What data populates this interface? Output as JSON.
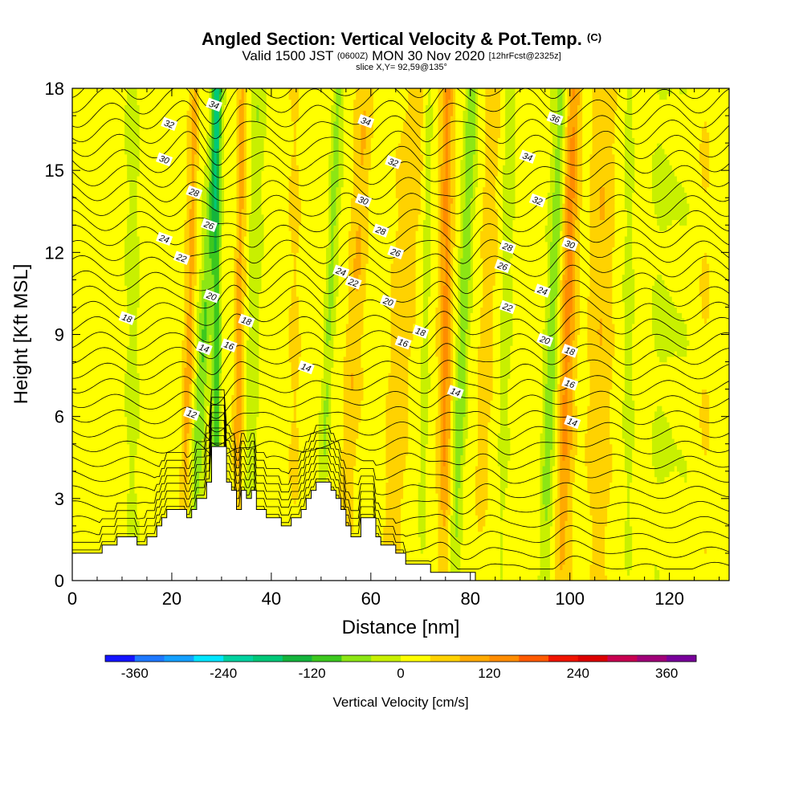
{
  "chart_data": {
    "type": "heatmap",
    "title": "Angled Section: Vertical Velocity & Pot.Temp.",
    "title_suffix": "(C)",
    "subtitle_valid": "Valid 1500 JST",
    "subtitle_utc": "(0600Z)",
    "subtitle_date": "MON 30 Nov 2020",
    "subtitle_fcst": "[12hrFcst@2325z]",
    "slice_label": "slice X,Y= 92,59@135°",
    "xlabel": "Distance [nm]",
    "ylabel": "Height [Kft MSL]",
    "xlim": [
      0,
      132
    ],
    "ylim": [
      0,
      18
    ],
    "x_ticks": [
      0,
      20,
      40,
      60,
      80,
      100,
      120
    ],
    "y_ticks": [
      0,
      3,
      6,
      9,
      12,
      15,
      18
    ],
    "colorbar": {
      "label": "Vertical Velocity [cm/s]",
      "range": [
        -400,
        400
      ],
      "step": 40,
      "tick_values": [
        -360,
        -240,
        -120,
        0,
        120,
        240,
        360
      ],
      "colors": [
        "#1414ff",
        "#1e78ff",
        "#14a0ff",
        "#00e6ff",
        "#00d2a0",
        "#00c878",
        "#14b43c",
        "#3cc81e",
        "#8ce614",
        "#c8f000",
        "#ffff00",
        "#ffd200",
        "#ffaa00",
        "#ff8c00",
        "#ff5a00",
        "#f01400",
        "#dc0000",
        "#c80050",
        "#a00078",
        "#78009b"
      ]
    },
    "velocity_bands": [
      {
        "x": 26.5,
        "w": 1.2,
        "amp": -90,
        "tilt": 0.9
      },
      {
        "x": 29.0,
        "w": 0.9,
        "amp": -130,
        "tilt": 0.0
      },
      {
        "x": 23.5,
        "w": 1.0,
        "amp": 70,
        "tilt": 0.4
      },
      {
        "x": 33.5,
        "w": 1.0,
        "amp": 85,
        "tilt": 0.2
      },
      {
        "x": 36.5,
        "w": 1.2,
        "amp": -60,
        "tilt": 0.3
      },
      {
        "x": 45.0,
        "w": 1.5,
        "amp": 25,
        "tilt": 0.0
      },
      {
        "x": 51.5,
        "w": 1.0,
        "amp": -70,
        "tilt": 0.6
      },
      {
        "x": 56.5,
        "w": 1.8,
        "amp": 55,
        "tilt": 0.8
      },
      {
        "x": 66.5,
        "w": 2.5,
        "amp": 50,
        "tilt": 0.8
      },
      {
        "x": 71.0,
        "w": 1.0,
        "amp": -45,
        "tilt": 0.2
      },
      {
        "x": 75.0,
        "w": 1.3,
        "amp": 120,
        "tilt": 0.1
      },
      {
        "x": 78.5,
        "w": 1.2,
        "amp": -95,
        "tilt": 0.55
      },
      {
        "x": 83.0,
        "w": 1.5,
        "amp": 50,
        "tilt": 0.4
      },
      {
        "x": 87.0,
        "w": 1.0,
        "amp": -45,
        "tilt": 0.3
      },
      {
        "x": 96.5,
        "w": 1.3,
        "amp": -80,
        "tilt": 0.6
      },
      {
        "x": 99.5,
        "w": 1.6,
        "amp": 105,
        "tilt": 0.4
      },
      {
        "x": 106.0,
        "w": 3.0,
        "amp": 50,
        "tilt": 0.3
      },
      {
        "x": 112.0,
        "w": 1.2,
        "amp": -35,
        "tilt": 0.0
      },
      {
        "x": 5.0,
        "w": 2.5,
        "amp": 20,
        "tilt": 0.0
      },
      {
        "x": 12.0,
        "w": 2.0,
        "amp": -20,
        "tilt": 0.0
      },
      {
        "x": 120.0,
        "w": 3.0,
        "amp": -25,
        "tilt": 0.0
      },
      {
        "x": 127.0,
        "w": 2.0,
        "amp": 15,
        "tilt": 0.0
      }
    ],
    "terrain": {
      "x": [
        0,
        5,
        6,
        9,
        13,
        15,
        17,
        18,
        19,
        20,
        23,
        24,
        25,
        27,
        28,
        30,
        31,
        32,
        33,
        34,
        35,
        36,
        37,
        38,
        39,
        40,
        42,
        44,
        46,
        47,
        48,
        49,
        50,
        52,
        53,
        54,
        55,
        56,
        57,
        58,
        59,
        61,
        62,
        63,
        65,
        66,
        67,
        68,
        72,
        73,
        80
      ],
      "y": [
        1.0,
        1.0,
        1.3,
        1.6,
        1.3,
        1.6,
        2.0,
        2.3,
        2.6,
        2.6,
        2.3,
        2.6,
        3.0,
        3.6,
        4.9,
        4.9,
        3.6,
        3.3,
        2.6,
        3.3,
        3.0,
        3.3,
        2.6,
        2.6,
        2.3,
        2.3,
        2.0,
        2.3,
        2.6,
        3.0,
        3.3,
        3.6,
        3.6,
        3.3,
        3.0,
        2.6,
        2.0,
        1.6,
        1.6,
        2.3,
        2.3,
        1.6,
        1.3,
        1.3,
        1.0,
        1.0,
        0.6,
        0.6,
        0.3,
        0.3,
        0.3
      ]
    },
    "theta_contours": {
      "levels_c": [
        0,
        1,
        2,
        3,
        4,
        5,
        6,
        7,
        8,
        9,
        10,
        11,
        12,
        13,
        14,
        15,
        16,
        17,
        18,
        19,
        20,
        21,
        22,
        23,
        24,
        25,
        26,
        27,
        28,
        29,
        30,
        31,
        32,
        33,
        34,
        35,
        36,
        37,
        38
      ],
      "base_height_kft": 0.5,
      "spacing_kft": 0.55,
      "labels": [
        {
          "text": "34",
          "x": 28.5,
          "y": 17.4
        },
        {
          "text": "32",
          "x": 19.5,
          "y": 16.7
        },
        {
          "text": "30",
          "x": 18.5,
          "y": 15.4
        },
        {
          "text": "28",
          "x": 24.5,
          "y": 14.2
        },
        {
          "text": "26",
          "x": 27.5,
          "y": 13.0
        },
        {
          "text": "24",
          "x": 18.5,
          "y": 12.5
        },
        {
          "text": "22",
          "x": 22.0,
          "y": 11.8
        },
        {
          "text": "20",
          "x": 28.0,
          "y": 10.4
        },
        {
          "text": "18",
          "x": 35.0,
          "y": 9.5
        },
        {
          "text": "18",
          "x": 11.0,
          "y": 9.6
        },
        {
          "text": "16",
          "x": 31.5,
          "y": 8.6
        },
        {
          "text": "14",
          "x": 26.5,
          "y": 8.5
        },
        {
          "text": "14",
          "x": 47.0,
          "y": 7.8
        },
        {
          "text": "12",
          "x": 24.0,
          "y": 6.1
        },
        {
          "text": "34",
          "x": 59.0,
          "y": 16.8
        },
        {
          "text": "32",
          "x": 64.5,
          "y": 15.3
        },
        {
          "text": "30",
          "x": 58.5,
          "y": 13.9
        },
        {
          "text": "28",
          "x": 62.0,
          "y": 12.8
        },
        {
          "text": "26",
          "x": 65.0,
          "y": 12.0
        },
        {
          "text": "24",
          "x": 54.0,
          "y": 11.3
        },
        {
          "text": "22",
          "x": 56.5,
          "y": 10.9
        },
        {
          "text": "20",
          "x": 63.5,
          "y": 10.2
        },
        {
          "text": "18",
          "x": 70.0,
          "y": 9.1
        },
        {
          "text": "16",
          "x": 66.5,
          "y": 8.7
        },
        {
          "text": "14",
          "x": 77.0,
          "y": 6.9
        },
        {
          "text": "36",
          "x": 97.0,
          "y": 16.9
        },
        {
          "text": "34",
          "x": 91.5,
          "y": 15.5
        },
        {
          "text": "32",
          "x": 93.5,
          "y": 13.9
        },
        {
          "text": "30",
          "x": 100.0,
          "y": 12.3
        },
        {
          "text": "28",
          "x": 87.5,
          "y": 12.2
        },
        {
          "text": "26",
          "x": 86.5,
          "y": 11.5
        },
        {
          "text": "24",
          "x": 94.5,
          "y": 10.6
        },
        {
          "text": "22",
          "x": 87.5,
          "y": 10.0
        },
        {
          "text": "20",
          "x": 95.0,
          "y": 8.8
        },
        {
          "text": "18",
          "x": 100.0,
          "y": 8.4
        },
        {
          "text": "16",
          "x": 100.0,
          "y": 7.2
        },
        {
          "text": "14",
          "x": 100.5,
          "y": 5.8
        }
      ]
    }
  }
}
